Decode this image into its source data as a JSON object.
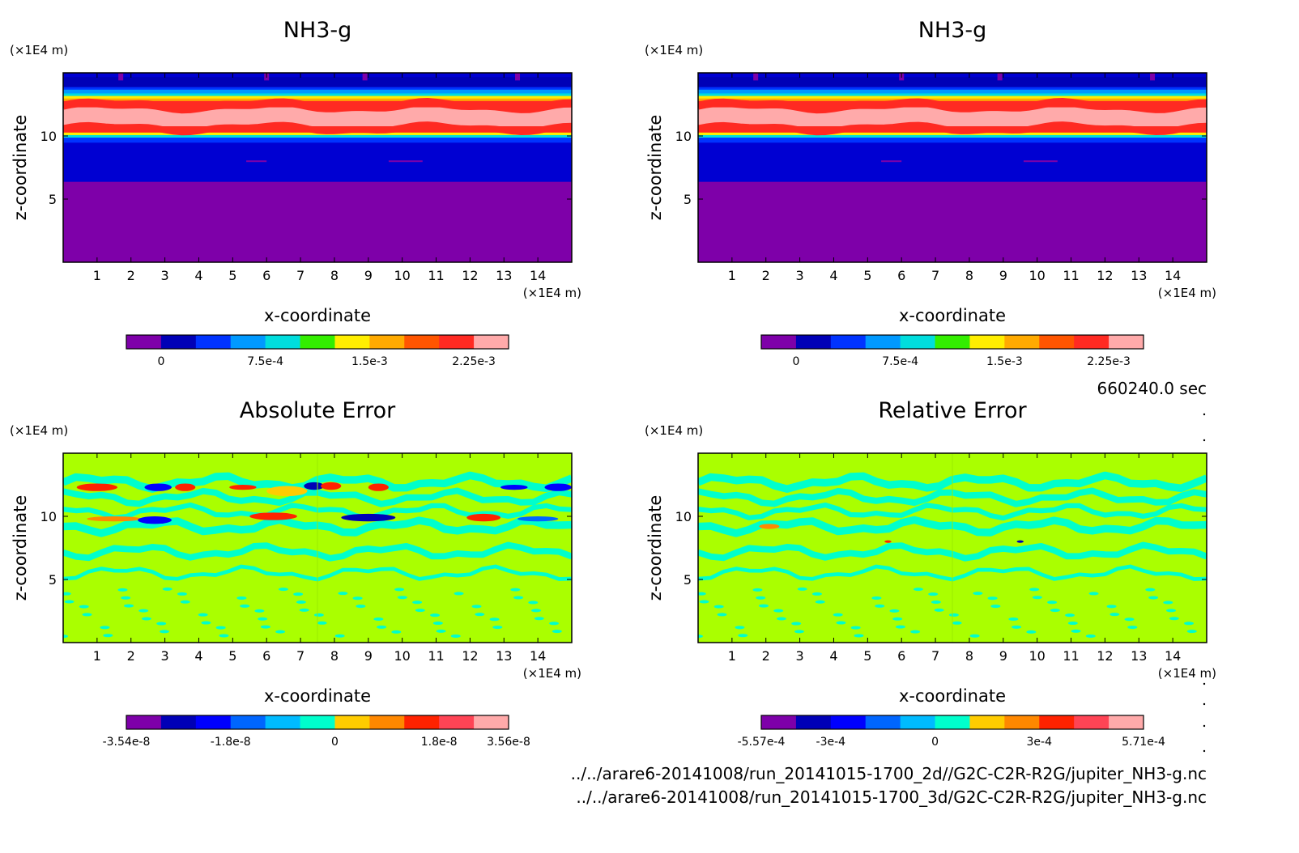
{
  "footer": {
    "time_label": "660240.0 sec",
    "file_2d": "../../arare6-20141008/run_20141015-1700_2d//G2C-C2R-R2G/jupiter_NH3-g.nc",
    "file_3d": "../../arare6-20141008/run_20141015-1700_3d/G2C-C2R-R2G/jupiter_NH3-g.nc"
  },
  "chart_data": [
    {
      "type": "heatmap",
      "title": "NH3-g",
      "xlabel": "x-coordinate",
      "ylabel": "z-coordinate",
      "x_unit": "(×1E4 m)",
      "y_unit": "(×1E4 m)",
      "x_ticks": [
        1,
        2,
        3,
        4,
        5,
        6,
        7,
        8,
        9,
        10,
        11,
        12,
        13,
        14
      ],
      "y_ticks": [
        5,
        10
      ],
      "xlim": [
        0,
        15
      ],
      "ylim": [
        0,
        15
      ],
      "colorbar": {
        "colors": [
          "#7e00a9",
          "#0000b6",
          "#0033ff",
          "#0099ff",
          "#00dddd",
          "#33ee00",
          "#ffee00",
          "#ffaa00",
          "#ff5500",
          "#ff2a22",
          "#ffaaaa"
        ],
        "tick_labels": [
          "0",
          "7.5e-4",
          "1.5e-3",
          "2.25e-3"
        ],
        "tick_boundaries": [
          1,
          4,
          7,
          10
        ]
      },
      "layers": [
        {
          "z0": 0,
          "z1": 6.4,
          "color": "#7e00a9"
        },
        {
          "z0": 6.4,
          "z1": 9.5,
          "color": "#0000d2"
        },
        {
          "z0": 9.5,
          "z1": 9.9,
          "color": "#0033ff"
        },
        {
          "z0": 9.9,
          "z1": 10.1,
          "color": "#00dddd"
        },
        {
          "z0": 10.1,
          "z1": 10.3,
          "color": "#ffee00"
        },
        {
          "z0": 10.3,
          "z1": 10.8,
          "color": "#ff2a22"
        },
        {
          "z0": 10.8,
          "z1": 12.3,
          "color": "#ffaaaa"
        },
        {
          "z0": 12.3,
          "z1": 12.8,
          "color": "#ff2a22"
        },
        {
          "z0": 12.8,
          "z1": 13.0,
          "color": "#ffaa00"
        },
        {
          "z0": 13.0,
          "z1": 13.2,
          "color": "#ffee00"
        },
        {
          "z0": 13.2,
          "z1": 13.4,
          "color": "#00dddd"
        },
        {
          "z0": 13.4,
          "z1": 13.7,
          "color": "#0099ff"
        },
        {
          "z0": 13.7,
          "z1": 13.9,
          "color": "#0033ff"
        },
        {
          "z0": 13.9,
          "z1": 14.7,
          "color": "#0000b6"
        },
        {
          "z0": 14.7,
          "z1": 15.0,
          "color": "#0000d2"
        }
      ]
    },
    {
      "type": "heatmap",
      "title": "NH3-g",
      "xlabel": "x-coordinate",
      "ylabel": "z-coordinate",
      "x_unit": "(×1E4 m)",
      "y_unit": "(×1E4 m)",
      "x_ticks": [
        1,
        2,
        3,
        4,
        5,
        6,
        7,
        8,
        9,
        10,
        11,
        12,
        13,
        14
      ],
      "y_ticks": [
        5,
        10
      ],
      "xlim": [
        0,
        15
      ],
      "ylim": [
        0,
        15
      ],
      "colorbar": {
        "colors": [
          "#7e00a9",
          "#0000b6",
          "#0033ff",
          "#0099ff",
          "#00dddd",
          "#33ee00",
          "#ffee00",
          "#ffaa00",
          "#ff5500",
          "#ff2a22",
          "#ffaaaa"
        ],
        "tick_labels": [
          "0",
          "7.5e-4",
          "1.5e-3",
          "2.25e-3"
        ],
        "tick_boundaries": [
          1,
          4,
          7,
          10
        ]
      },
      "layers": [
        {
          "z0": 0,
          "z1": 6.4,
          "color": "#7e00a9"
        },
        {
          "z0": 6.4,
          "z1": 9.5,
          "color": "#0000d2"
        },
        {
          "z0": 9.5,
          "z1": 9.9,
          "color": "#0033ff"
        },
        {
          "z0": 9.9,
          "z1": 10.1,
          "color": "#00dddd"
        },
        {
          "z0": 10.1,
          "z1": 10.3,
          "color": "#ffee00"
        },
        {
          "z0": 10.3,
          "z1": 10.8,
          "color": "#ff2a22"
        },
        {
          "z0": 10.8,
          "z1": 12.3,
          "color": "#ffaaaa"
        },
        {
          "z0": 12.3,
          "z1": 12.8,
          "color": "#ff2a22"
        },
        {
          "z0": 12.8,
          "z1": 13.0,
          "color": "#ffaa00"
        },
        {
          "z0": 13.0,
          "z1": 13.2,
          "color": "#ffee00"
        },
        {
          "z0": 13.2,
          "z1": 13.4,
          "color": "#00dddd"
        },
        {
          "z0": 13.4,
          "z1": 13.7,
          "color": "#0099ff"
        },
        {
          "z0": 13.7,
          "z1": 13.9,
          "color": "#0033ff"
        },
        {
          "z0": 13.9,
          "z1": 14.7,
          "color": "#0000b6"
        },
        {
          "z0": 14.7,
          "z1": 15.0,
          "color": "#0000d2"
        }
      ]
    },
    {
      "type": "heatmap",
      "title": "Absolute Error",
      "xlabel": "x-coordinate",
      "ylabel": "z-coordinate",
      "x_unit": "(×1E4 m)",
      "y_unit": "(×1E4 m)",
      "x_ticks": [
        1,
        2,
        3,
        4,
        5,
        6,
        7,
        8,
        9,
        10,
        11,
        12,
        13,
        14
      ],
      "y_ticks": [
        5,
        10
      ],
      "xlim": [
        0,
        15
      ],
      "ylim": [
        0,
        15
      ],
      "background_color": "#aaff00",
      "colorbar": {
        "colors": [
          "#7e00a9",
          "#0000b6",
          "#0000ff",
          "#0066ff",
          "#00bbff",
          "#00ffcc",
          "#ffcc00",
          "#ff8800",
          "#ff2200",
          "#ff4455",
          "#ffaaaa"
        ],
        "tick_labels": [
          "-3.54e-8",
          "-1.8e-8",
          "0",
          "1.8e-8",
          "3.56e-8"
        ],
        "tick_boundaries": [
          0,
          3,
          6,
          9,
          11
        ]
      },
      "features": [
        {
          "x": 1.0,
          "z": 12.3,
          "rx": 0.6,
          "rz": 0.3,
          "color": "#ff2200"
        },
        {
          "x": 2.8,
          "z": 12.3,
          "rx": 0.4,
          "rz": 0.3,
          "color": "#0000ff"
        },
        {
          "x": 3.6,
          "z": 12.3,
          "rx": 0.3,
          "rz": 0.3,
          "color": "#ff2200"
        },
        {
          "x": 5.3,
          "z": 12.3,
          "rx": 0.4,
          "rz": 0.2,
          "color": "#ff2200"
        },
        {
          "x": 6.6,
          "z": 12.0,
          "rx": 0.6,
          "rz": 0.4,
          "color": "#ffcc00"
        },
        {
          "x": 7.4,
          "z": 12.4,
          "rx": 0.3,
          "rz": 0.3,
          "color": "#0000b6"
        },
        {
          "x": 7.9,
          "z": 12.4,
          "rx": 0.3,
          "rz": 0.3,
          "color": "#ff2200"
        },
        {
          "x": 9.3,
          "z": 12.3,
          "rx": 0.3,
          "rz": 0.3,
          "color": "#ff2200"
        },
        {
          "x": 13.3,
          "z": 12.3,
          "rx": 0.4,
          "rz": 0.2,
          "color": "#0000ff"
        },
        {
          "x": 14.6,
          "z": 12.3,
          "rx": 0.4,
          "rz": 0.3,
          "color": "#0000ff"
        },
        {
          "x": 1.5,
          "z": 9.8,
          "rx": 0.8,
          "rz": 0.2,
          "color": "#ff8800"
        },
        {
          "x": 2.7,
          "z": 9.7,
          "rx": 0.5,
          "rz": 0.3,
          "color": "#0000ff"
        },
        {
          "x": 6.2,
          "z": 10.0,
          "rx": 0.7,
          "rz": 0.3,
          "color": "#ff2200"
        },
        {
          "x": 9.0,
          "z": 9.9,
          "rx": 0.8,
          "rz": 0.3,
          "color": "#0000b6"
        },
        {
          "x": 12.4,
          "z": 9.9,
          "rx": 0.5,
          "rz": 0.3,
          "color": "#ff2200"
        },
        {
          "x": 14.0,
          "z": 9.8,
          "rx": 0.6,
          "rz": 0.2,
          "color": "#0066ff"
        }
      ]
    },
    {
      "type": "heatmap",
      "title": "Relative Error",
      "xlabel": "x-coordinate",
      "ylabel": "z-coordinate",
      "x_unit": "(×1E4 m)",
      "y_unit": "(×1E4 m)",
      "x_ticks": [
        1,
        2,
        3,
        4,
        5,
        6,
        7,
        8,
        9,
        10,
        11,
        12,
        13,
        14
      ],
      "y_ticks": [
        5,
        10
      ],
      "xlim": [
        0,
        15
      ],
      "ylim": [
        0,
        15
      ],
      "background_color": "#aaff00",
      "colorbar": {
        "colors": [
          "#7e00a9",
          "#0000b6",
          "#0000ff",
          "#0066ff",
          "#00bbff",
          "#00ffcc",
          "#ffcc00",
          "#ff8800",
          "#ff2200",
          "#ff4455",
          "#ffaaaa"
        ],
        "tick_labels": [
          "-5.57e-4",
          "-3e-4",
          "0",
          "3e-4",
          "5.71e-4"
        ],
        "tick_boundaries": [
          0,
          2,
          5,
          8,
          11
        ]
      },
      "features": [
        {
          "x": 2.1,
          "z": 9.2,
          "rx": 0.3,
          "rz": 0.2,
          "color": "#ff8800"
        },
        {
          "x": 5.6,
          "z": 8.0,
          "rx": 0.1,
          "rz": 0.1,
          "color": "#ff2200"
        },
        {
          "x": 9.5,
          "z": 8.0,
          "rx": 0.1,
          "rz": 0.1,
          "color": "#0000b6"
        }
      ]
    }
  ]
}
